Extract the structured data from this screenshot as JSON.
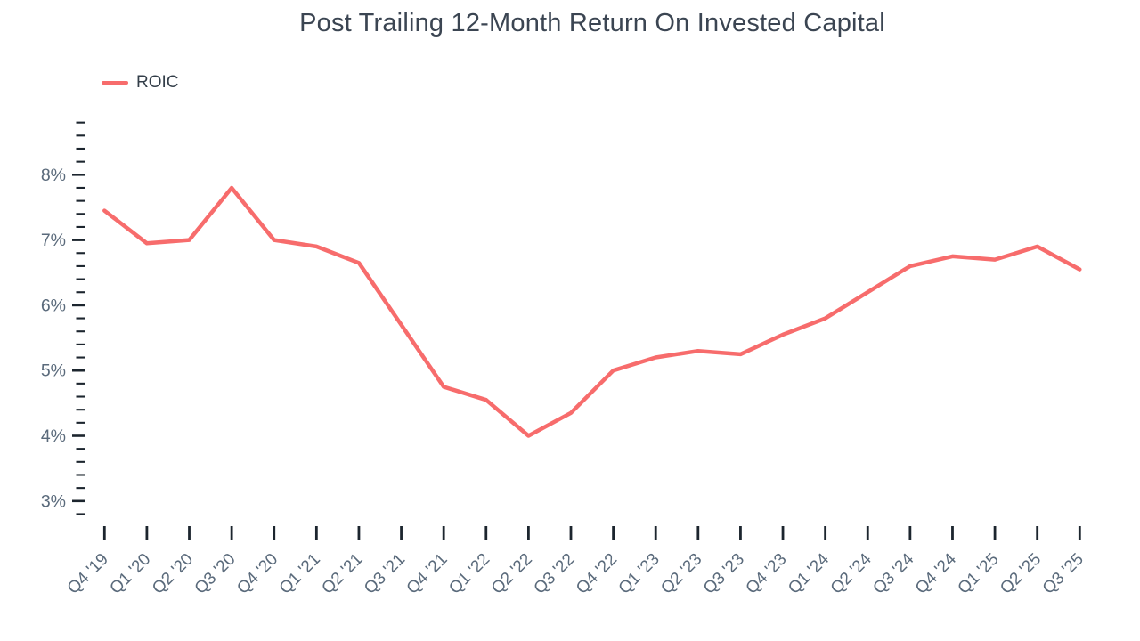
{
  "chart_data": {
    "type": "line",
    "title": "Post Trailing 12-Month Return On Invested Capital",
    "legend_position": "top-left",
    "grid": false,
    "categories": [
      "Q4 '19",
      "Q1 '20",
      "Q2 '20",
      "Q3 '20",
      "Q4 '20",
      "Q1 '21",
      "Q2 '21",
      "Q3 '21",
      "Q4 '21",
      "Q1 '22",
      "Q2 '22",
      "Q3 '22",
      "Q4 '22",
      "Q1 '23",
      "Q2 '23",
      "Q3 '23",
      "Q4 '23",
      "Q1 '24",
      "Q2 '24",
      "Q3 '24",
      "Q4 '24",
      "Q1 '25",
      "Q2 '25",
      "Q3 '25"
    ],
    "series": [
      {
        "name": "ROIC",
        "color": "#f76c6c",
        "values": [
          7.45,
          6.95,
          7.0,
          7.8,
          7.0,
          6.9,
          6.65,
          5.7,
          4.75,
          4.55,
          4.0,
          4.35,
          5.0,
          5.2,
          5.3,
          5.25,
          5.55,
          5.8,
          6.2,
          6.6,
          6.75,
          6.7,
          6.9,
          6.55
        ]
      }
    ],
    "xlabel": "",
    "ylabel": "",
    "y_axis": {
      "min": 2.8,
      "max": 8.8,
      "minor_step": 0.2,
      "major_step": 1,
      "unit": "%",
      "labels": [
        {
          "value": 8,
          "label": "8%"
        },
        {
          "value": 7,
          "label": "7%"
        },
        {
          "value": 6,
          "label": "6%"
        },
        {
          "value": 5,
          "label": "5%"
        },
        {
          "value": 4,
          "label": "4%"
        },
        {
          "value": 3,
          "label": "3%"
        }
      ]
    },
    "colors": {
      "title_text": "#3b4552",
      "axis_label_text": "#5a6a7b",
      "tick_mark": "#1c252e",
      "legend_text": "#333e49",
      "background": "#ffffff"
    }
  }
}
